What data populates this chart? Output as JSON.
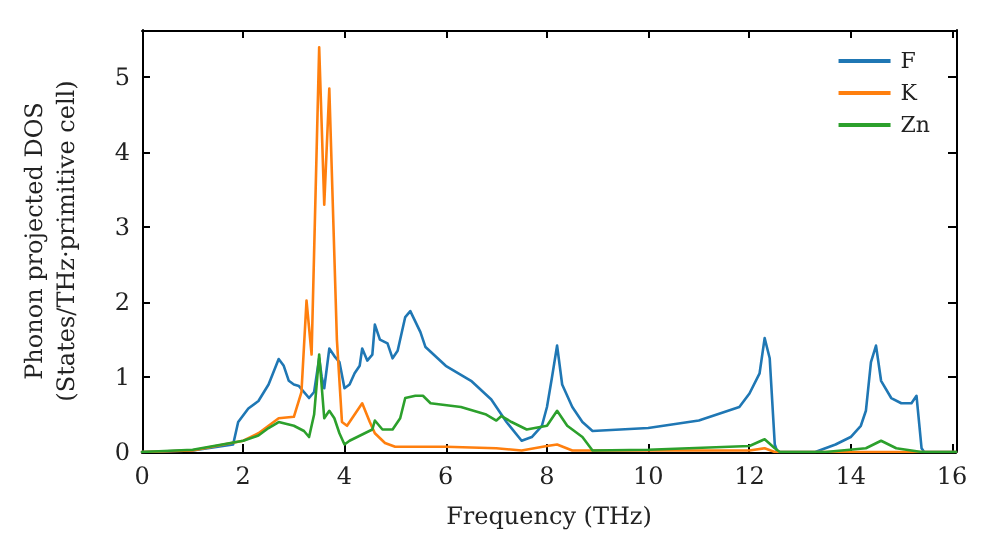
{
  "chart_data": {
    "type": "line",
    "xlabel": "Frequency (THz)",
    "ylabel": "Phonon projected DOS\n(States/THz·primitive cell)",
    "xlim": [
      0,
      16.08
    ],
    "ylim": [
      0,
      5.63
    ],
    "xticks": [
      0,
      2,
      4,
      6,
      8,
      10,
      12,
      14,
      16
    ],
    "yticks": [
      0,
      1,
      2,
      3,
      4,
      5
    ],
    "grid": false,
    "legend": "top right",
    "marker": "none",
    "line_style": "solid",
    "series": [
      {
        "name": "F",
        "color": "#1f77b4",
        "x": [
          0,
          1,
          1.8,
          1.9,
          2.1,
          2.3,
          2.5,
          2.7,
          2.8,
          2.9,
          3.0,
          3.1,
          3.3,
          3.4,
          3.5,
          3.55,
          3.6,
          3.7,
          3.8,
          3.9,
          4.0,
          4.1,
          4.2,
          4.3,
          4.35,
          4.45,
          4.55,
          4.6,
          4.7,
          4.85,
          4.95,
          5.05,
          5.2,
          5.3,
          5.5,
          5.6,
          6,
          6.5,
          6.9,
          7.0,
          7.2,
          7.5,
          7.7,
          7.9,
          8.0,
          8.1,
          8.2,
          8.3,
          8.5,
          8.7,
          8.9,
          10,
          11,
          11.8,
          12.0,
          12.2,
          12.3,
          12.4,
          12.5,
          12.55,
          13.3,
          13.7,
          14,
          14.2,
          14.3,
          14.4,
          14.5,
          14.6,
          14.8,
          15.0,
          15.2,
          15.3,
          15.4,
          15.45,
          16.08
        ],
        "values": [
          0,
          0.02,
          0.1,
          0.4,
          0.58,
          0.68,
          0.9,
          1.24,
          1.15,
          0.95,
          0.9,
          0.88,
          0.72,
          0.8,
          1.25,
          1.0,
          0.85,
          1.38,
          1.28,
          1.2,
          0.85,
          0.9,
          1.05,
          1.15,
          1.38,
          1.22,
          1.3,
          1.7,
          1.5,
          1.45,
          1.25,
          1.35,
          1.8,
          1.88,
          1.6,
          1.4,
          1.15,
          0.95,
          0.7,
          0.6,
          0.4,
          0.15,
          0.2,
          0.35,
          0.6,
          1.0,
          1.42,
          0.9,
          0.6,
          0.4,
          0.28,
          0.32,
          0.42,
          0.6,
          0.78,
          1.05,
          1.52,
          1.25,
          0.1,
          0,
          0,
          0.1,
          0.2,
          0.35,
          0.55,
          1.2,
          1.42,
          0.95,
          0.72,
          0.65,
          0.65,
          0.75,
          0.05,
          0,
          0
        ]
      },
      {
        "name": "K",
        "color": "#ff7f0e",
        "x": [
          0,
          1,
          2,
          2.3,
          2.6,
          2.7,
          3.0,
          3.15,
          3.25,
          3.35,
          3.5,
          3.6,
          3.7,
          3.85,
          3.95,
          4.05,
          4.2,
          4.35,
          4.5,
          4.6,
          4.8,
          5,
          6,
          7,
          7.5,
          8,
          8.2,
          8.5,
          9,
          12,
          12.3,
          12.5,
          16.08
        ],
        "values": [
          0,
          0.02,
          0.15,
          0.25,
          0.4,
          0.45,
          0.47,
          0.8,
          2.02,
          1.3,
          5.4,
          3.3,
          4.85,
          1.5,
          0.4,
          0.35,
          0.5,
          0.65,
          0.4,
          0.25,
          0.12,
          0.07,
          0.07,
          0.05,
          0.02,
          0.08,
          0.1,
          0.02,
          0.02,
          0.02,
          0.05,
          0,
          0
        ]
      },
      {
        "name": "Zn",
        "color": "#2ca02c",
        "x": [
          0,
          1,
          2,
          2.3,
          2.5,
          2.7,
          3.0,
          3.2,
          3.3,
          3.4,
          3.5,
          3.6,
          3.7,
          3.8,
          3.9,
          4.0,
          4.1,
          4.4,
          4.55,
          4.6,
          4.75,
          4.95,
          5.1,
          5.2,
          5.4,
          5.55,
          5.7,
          6.3,
          6.8,
          7.0,
          7.1,
          7.3,
          7.6,
          8.0,
          8.2,
          8.4,
          8.7,
          8.9,
          10,
          12,
          12.3,
          12.5,
          12.6,
          13.5,
          14.3,
          14.6,
          14.9,
          15.4,
          16.08
        ],
        "values": [
          0,
          0.03,
          0.15,
          0.22,
          0.32,
          0.4,
          0.35,
          0.28,
          0.2,
          0.5,
          1.3,
          0.45,
          0.55,
          0.45,
          0.25,
          0.1,
          0.15,
          0.25,
          0.3,
          0.42,
          0.3,
          0.3,
          0.45,
          0.72,
          0.75,
          0.75,
          0.65,
          0.6,
          0.5,
          0.42,
          0.48,
          0.4,
          0.3,
          0.35,
          0.55,
          0.35,
          0.2,
          0.02,
          0.03,
          0.08,
          0.17,
          0.05,
          0,
          0,
          0.05,
          0.15,
          0.05,
          0,
          0
        ]
      }
    ]
  }
}
